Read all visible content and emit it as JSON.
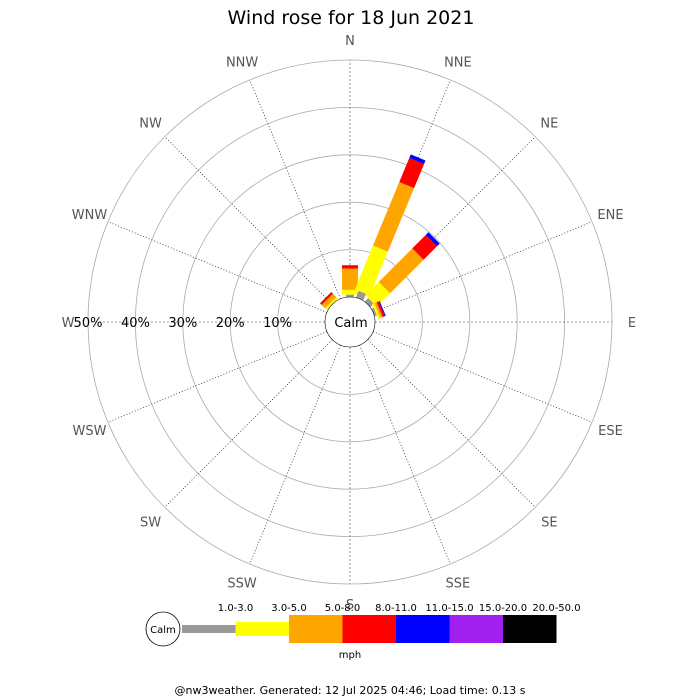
{
  "chart_data": {
    "type": "wind-rose",
    "title": "Wind rose for 18 Jun 2021",
    "directions": [
      "N",
      "NNE",
      "NE",
      "ENE",
      "E",
      "ESE",
      "SE",
      "SSE",
      "S",
      "SSW",
      "SW",
      "WSW",
      "W",
      "WNW",
      "NW",
      "NNW"
    ],
    "radial_ticks": [
      "10%",
      "20%",
      "30%",
      "40%",
      "50%"
    ],
    "radial_max": 50,
    "calm_label": "Calm",
    "speed_unit": "mph",
    "speed_bins": [
      "1.0-3.0",
      "3.0-5.0",
      "5.0-8.0",
      "8.0-11.0",
      "11.0-15.0",
      "15.0-20.0",
      "20.0-50.0"
    ],
    "bin_colors": [
      "#999999",
      "#ffff00",
      "#ffa500",
      "#ff0000",
      "#0000ff",
      "#a020f0",
      "#000000"
    ],
    "series": [
      {
        "direction": "N",
        "values": [
          0.5,
          1.0,
          4.5,
          0.7,
          0,
          0,
          0
        ]
      },
      {
        "direction": "NNE",
        "values": [
          1.5,
          10.0,
          14.5,
          5.5,
          0.8,
          0,
          0
        ]
      },
      {
        "direction": "NE",
        "values": [
          1.0,
          4.0,
          10.0,
          4.0,
          0.8,
          0,
          0
        ]
      },
      {
        "direction": "ENE",
        "values": [
          0.5,
          0.5,
          0.5,
          0.5,
          0.2,
          0,
          0
        ]
      },
      {
        "direction": "E",
        "values": [
          0,
          0,
          0,
          0,
          0,
          0,
          0
        ]
      },
      {
        "direction": "ESE",
        "values": [
          0,
          0,
          0,
          0,
          0,
          0,
          0
        ]
      },
      {
        "direction": "SE",
        "values": [
          0,
          0,
          0,
          0,
          0,
          0,
          0
        ]
      },
      {
        "direction": "SSE",
        "values": [
          0,
          0,
          0,
          0,
          0,
          0,
          0
        ]
      },
      {
        "direction": "S",
        "values": [
          0,
          0,
          0,
          0,
          0,
          0,
          0
        ]
      },
      {
        "direction": "SSW",
        "values": [
          0,
          0,
          0,
          0,
          0,
          0,
          0
        ]
      },
      {
        "direction": "SW",
        "values": [
          0,
          0,
          0,
          0,
          0,
          0,
          0
        ]
      },
      {
        "direction": "WSW",
        "values": [
          0,
          0,
          0,
          0,
          0,
          0,
          0
        ]
      },
      {
        "direction": "W",
        "values": [
          0,
          0,
          0,
          0,
          0,
          0,
          0
        ]
      },
      {
        "direction": "WNW",
        "values": [
          0,
          0,
          0,
          0,
          0,
          0,
          0
        ]
      },
      {
        "direction": "NW",
        "values": [
          0,
          0.5,
          1.0,
          0.5,
          0,
          0,
          0
        ]
      },
      {
        "direction": "NNW",
        "values": [
          0,
          0,
          0,
          0,
          0,
          0,
          0
        ]
      }
    ]
  },
  "footer": "@nw3weather. Generated: 12 Jul 2025 04:46; Load time: 0.13 s"
}
